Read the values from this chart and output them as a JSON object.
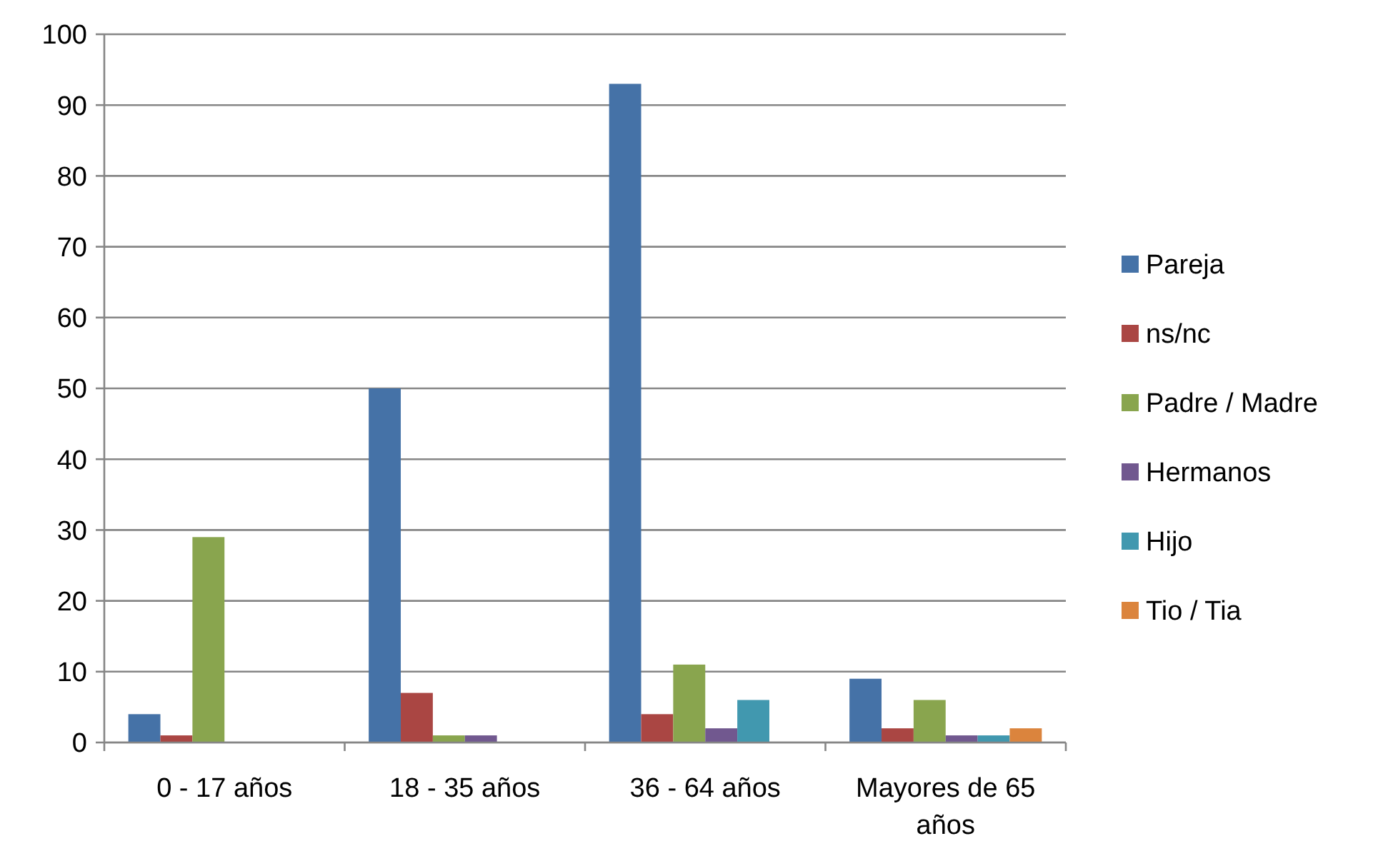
{
  "chart_data": {
    "type": "bar",
    "categories": [
      "0 - 17 años",
      "18 - 35 años",
      "36 - 64 años",
      "Mayores de 65 años"
    ],
    "series": [
      {
        "name": "Pareja",
        "color": "#4572a7",
        "values": [
          4,
          50,
          93,
          9
        ]
      },
      {
        "name": "ns/nc",
        "color": "#aa4643",
        "values": [
          1,
          7,
          4,
          2
        ]
      },
      {
        "name": "Padre / Madre",
        "color": "#89a54e",
        "values": [
          29,
          1,
          11,
          6
        ]
      },
      {
        "name": "Hermanos",
        "color": "#71588f",
        "values": [
          0,
          1,
          2,
          1
        ]
      },
      {
        "name": "Hijo",
        "color": "#4198af",
        "values": [
          0,
          0,
          6,
          1
        ]
      },
      {
        "name": "Tio / Tia",
        "color": "#db843d",
        "values": [
          0,
          0,
          0,
          2
        ]
      }
    ],
    "ylim": [
      0,
      100
    ],
    "yticks": [
      0,
      10,
      20,
      30,
      40,
      50,
      60,
      70,
      80,
      90,
      100
    ],
    "grid": "y",
    "legend": "right"
  }
}
